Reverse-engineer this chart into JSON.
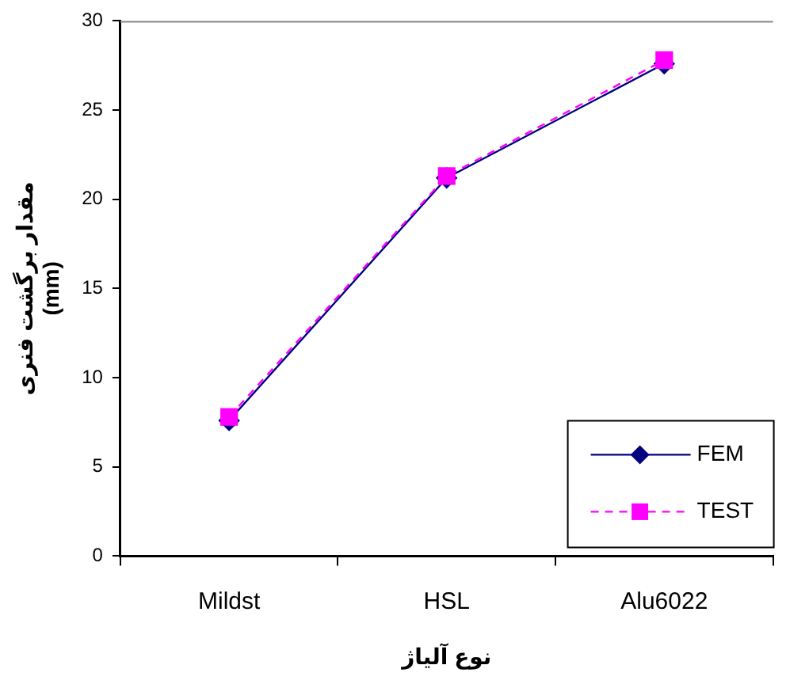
{
  "chart_data": {
    "type": "line",
    "xlabel": "نوع آلیاژ",
    "ylabel": "مقدار برگشت فنری\n(mm)",
    "categories": [
      "Mildst",
      "HSL",
      "Alu6022"
    ],
    "series": [
      {
        "name": "FEM",
        "color": "#000080",
        "values": [
          7.6,
          21.2,
          27.6
        ],
        "marker": "diamond",
        "line_style": "solid"
      },
      {
        "name": "TEST",
        "color": "#ff00ff",
        "values": [
          7.8,
          21.3,
          27.8
        ],
        "marker": "square",
        "line_style": "dashed"
      }
    ],
    "ylim": [
      0,
      30
    ],
    "yticks": [
      0,
      5,
      10,
      15,
      20,
      25,
      30
    ],
    "grid": false,
    "legend": "bottom right"
  }
}
